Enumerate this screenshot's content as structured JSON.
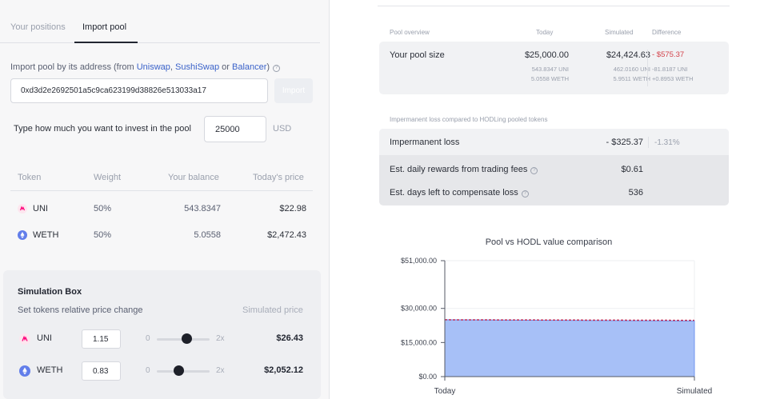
{
  "tabs": [
    {
      "label": "Your positions",
      "active": false
    },
    {
      "label": "Import pool",
      "active": true
    }
  ],
  "import": {
    "label_prefix": "Import pool by its address (from ",
    "uniswap": "Uniswap",
    "comma": ", ",
    "sushiswap": "SushiSwap",
    "or": " or ",
    "balancer": "Balancer",
    "label_suffix": ")",
    "address_value": "0xd3d2e2692501a5c9ca623199d38826e513033a17",
    "button_label": "Import"
  },
  "invest": {
    "label": "Type how much you want to invest in the pool",
    "value": "25000",
    "currency": "USD"
  },
  "token_table": {
    "headers": [
      "Token",
      "Weight",
      "Your balance",
      "Today's price"
    ],
    "rows": [
      {
        "token": "UNI",
        "weight": "50%",
        "balance": "543.8347",
        "price": "$22.98"
      },
      {
        "token": "WETH",
        "weight": "50%",
        "balance": "5.0558",
        "price": "$2,472.43"
      }
    ]
  },
  "simulation": {
    "title": "Simulation Box",
    "subtitle": "Set tokens relative price change",
    "price_header": "Simulated price",
    "rows": [
      {
        "token": "UNI",
        "value": "1.15",
        "min": "0",
        "max": "2x",
        "level": 0.575,
        "price": "$26.43"
      },
      {
        "token": "WETH",
        "value": "0.83",
        "min": "0",
        "max": "2x",
        "level": 0.415,
        "price": "$2,052.12"
      }
    ]
  },
  "overview": {
    "headers": [
      "Pool overview",
      "Today",
      "Simulated",
      "Difference"
    ],
    "label": "Your pool size",
    "today": "$25,000.00",
    "today_uni": "543.8347 UNI",
    "today_weth": "5.0558 WETH",
    "simulated": "$24,424.63",
    "simulated_uni": "462.0160 UNI",
    "simulated_weth": "5.9511 WETH",
    "difference": "- $575.37",
    "difference_uni": "-81.8187 UNI",
    "difference_weth": "+0.8953 WETH"
  },
  "impermanent": {
    "caption": "Impermanent loss compared to HODLing pooled tokens",
    "loss_label": "Impermanent loss",
    "loss_value": "- $325.37",
    "loss_pct": "-1.31%",
    "rewards_label": "Est. daily rewards from trading fees",
    "rewards_value": "$0.61",
    "days_label": "Est. days left to compensate loss",
    "days_value": "536"
  },
  "colors": {
    "accent_link": "#3a62c9",
    "negative": "#d3424a",
    "pool_fill": "#a7c0f7",
    "hodl_line": "#c2305a",
    "uni_brand": "#ff007a",
    "weth_brand": "#627eea"
  },
  "chart_data": {
    "type": "area",
    "title": "Pool vs HODL value comparison",
    "x": [
      "Today",
      "Simulated"
    ],
    "ylim": [
      0,
      51000
    ],
    "yticks": [
      0,
      15000,
      30000,
      51000
    ],
    "ytick_labels": [
      "$0.00",
      "$15,000.00",
      "$30,000.00",
      "$51,000.00"
    ],
    "grid": true,
    "series": [
      {
        "values": [
          25000,
          24424.63
        ],
        "style": "filled-area"
      },
      {
        "values": [
          25000,
          24750
        ],
        "style": "dashed-line"
      }
    ]
  }
}
